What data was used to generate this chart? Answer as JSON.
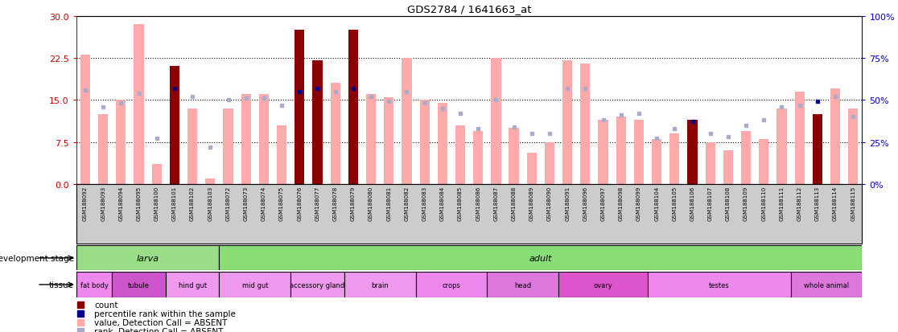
{
  "title": "GDS2784 / 1641663_at",
  "ylim_left": [
    0,
    30
  ],
  "ylim_right": [
    0,
    100
  ],
  "yticks_left": [
    0,
    7.5,
    15,
    22.5,
    30
  ],
  "yticks_right": [
    0,
    25,
    50,
    75,
    100
  ],
  "left_tick_color": "#cc0000",
  "right_tick_color": "#0000cc",
  "samples": [
    "GSM188092",
    "GSM188093",
    "GSM188094",
    "GSM188095",
    "GSM188100",
    "GSM188101",
    "GSM188102",
    "GSM188103",
    "GSM188072",
    "GSM188073",
    "GSM188074",
    "GSM188075",
    "GSM188076",
    "GSM188077",
    "GSM188078",
    "GSM188079",
    "GSM188080",
    "GSM188081",
    "GSM188082",
    "GSM188083",
    "GSM188084",
    "GSM188085",
    "GSM188086",
    "GSM188087",
    "GSM188088",
    "GSM188089",
    "GSM188090",
    "GSM188091",
    "GSM188096",
    "GSM188097",
    "GSM188098",
    "GSM188099",
    "GSM188104",
    "GSM188105",
    "GSM188106",
    "GSM188107",
    "GSM188108",
    "GSM188109",
    "GSM188110",
    "GSM188111",
    "GSM188112",
    "GSM188113",
    "GSM188114",
    "GSM188115"
  ],
  "values": [
    23.0,
    12.5,
    15.0,
    28.5,
    3.5,
    21.0,
    13.5,
    1.0,
    13.5,
    16.0,
    16.0,
    10.5,
    27.5,
    22.0,
    18.0,
    27.5,
    16.0,
    15.5,
    22.5,
    15.0,
    14.5,
    10.5,
    9.5,
    22.5,
    10.0,
    5.5,
    7.5,
    22.0,
    21.5,
    11.5,
    12.0,
    11.5,
    8.0,
    9.0,
    11.5,
    7.5,
    6.0,
    9.5,
    8.0,
    13.5,
    16.5,
    12.5,
    17.0,
    13.5
  ],
  "is_present": [
    false,
    false,
    false,
    false,
    false,
    true,
    false,
    false,
    false,
    false,
    false,
    false,
    true,
    true,
    false,
    true,
    false,
    false,
    false,
    false,
    false,
    false,
    false,
    false,
    false,
    false,
    false,
    false,
    false,
    false,
    false,
    false,
    false,
    false,
    true,
    false,
    false,
    false,
    false,
    false,
    false,
    true,
    false,
    false
  ],
  "ranks_pct": [
    56,
    46,
    48,
    54,
    27,
    57,
    52,
    22,
    50,
    51,
    51,
    47,
    55,
    57,
    55,
    57,
    52,
    49,
    55,
    48,
    45,
    42,
    33,
    50,
    34,
    30,
    30,
    57,
    57,
    38,
    41,
    42,
    27,
    33,
    37,
    30,
    28,
    35,
    38,
    46,
    47,
    49,
    52,
    40
  ],
  "color_bar_present": "#8b0000",
  "color_bar_absent": "#ffaaaa",
  "color_rank_present": "#00008b",
  "color_rank_absent": "#aaaacc",
  "dev_stage_groups": [
    {
      "label": "larva",
      "start": 0,
      "end": 8,
      "color": "#99dd88"
    },
    {
      "label": "adult",
      "start": 8,
      "end": 44,
      "color": "#88dd77"
    }
  ],
  "tissue_groups": [
    {
      "label": "fat body",
      "start": 0,
      "end": 2,
      "color": "#ee88ee"
    },
    {
      "label": "tubule",
      "start": 2,
      "end": 5,
      "color": "#cc55cc"
    },
    {
      "label": "hind gut",
      "start": 5,
      "end": 8,
      "color": "#ee99ee"
    },
    {
      "label": "mid gut",
      "start": 8,
      "end": 12,
      "color": "#ee99ee"
    },
    {
      "label": "accessory gland",
      "start": 12,
      "end": 15,
      "color": "#ee99ee"
    },
    {
      "label": "brain",
      "start": 15,
      "end": 19,
      "color": "#ee99ee"
    },
    {
      "label": "crops",
      "start": 19,
      "end": 23,
      "color": "#ee88ee"
    },
    {
      "label": "head",
      "start": 23,
      "end": 27,
      "color": "#dd77dd"
    },
    {
      "label": "ovary",
      "start": 27,
      "end": 32,
      "color": "#dd55cc"
    },
    {
      "label": "testes",
      "start": 32,
      "end": 40,
      "color": "#ee88ee"
    },
    {
      "label": "whole animal",
      "start": 40,
      "end": 44,
      "color": "#dd77dd"
    }
  ],
  "legend_items": [
    {
      "label": "count",
      "color": "#8b0000"
    },
    {
      "label": "percentile rank within the sample",
      "color": "#00008b"
    },
    {
      "label": "value, Detection Call = ABSENT",
      "color": "#ffaaaa"
    },
    {
      "label": "rank, Detection Call = ABSENT",
      "color": "#aaaacc"
    }
  ],
  "xaxis_bg": "#cccccc"
}
